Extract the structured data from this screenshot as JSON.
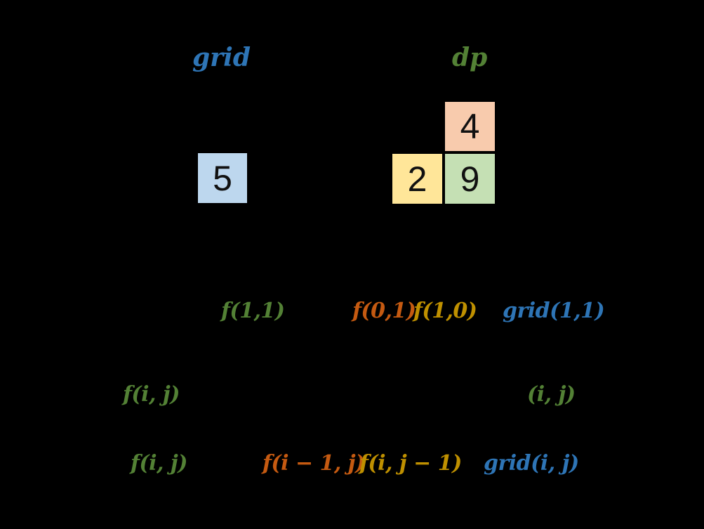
{
  "canvas": {
    "background": "#000000"
  },
  "palette": {
    "blue": "#2E75B6",
    "green": "#538135",
    "orange": "#C55A11",
    "gold": "#BF9000",
    "cell_blue_fill": "#BDD7EE",
    "cell_orange_fill": "#F8CBAD",
    "cell_yellow_fill": "#FFE699",
    "cell_green_fill": "#C5E0B4",
    "cell_border": "#000000"
  },
  "titles": {
    "grid": {
      "text": "grid",
      "color": "#2E75B6"
    },
    "dp": {
      "text": "dp",
      "color": "#538135"
    }
  },
  "cells": {
    "grid5": {
      "value": "5",
      "fill": "#BDD7EE"
    },
    "dp4": {
      "value": "4",
      "fill": "#F8CBAD"
    },
    "dp2": {
      "value": "2",
      "fill": "#FFE699"
    },
    "dp9": {
      "value": "9",
      "fill": "#C5E0B4"
    }
  },
  "formulas": {
    "row1": [
      {
        "text": "f(1,1)",
        "color": "#538135"
      },
      {
        "text": "f(0,1)",
        "color": "#C55A11"
      },
      {
        "text": "f(1,0)",
        "color": "#BF9000"
      },
      {
        "text": "grid(1,1)",
        "color": "#2E75B6"
      }
    ],
    "row2": [
      {
        "text": "f(i, j)",
        "color": "#538135"
      },
      {
        "text": "(i, j)",
        "color": "#538135"
      }
    ],
    "row3": [
      {
        "text": "f(i, j)",
        "color": "#538135"
      },
      {
        "text": "f(i − 1, j)",
        "color": "#C55A11"
      },
      {
        "text": "f(i, j − 1)",
        "color": "#BF9000"
      },
      {
        "text": "grid(i, j)",
        "color": "#2E75B6"
      }
    ]
  }
}
